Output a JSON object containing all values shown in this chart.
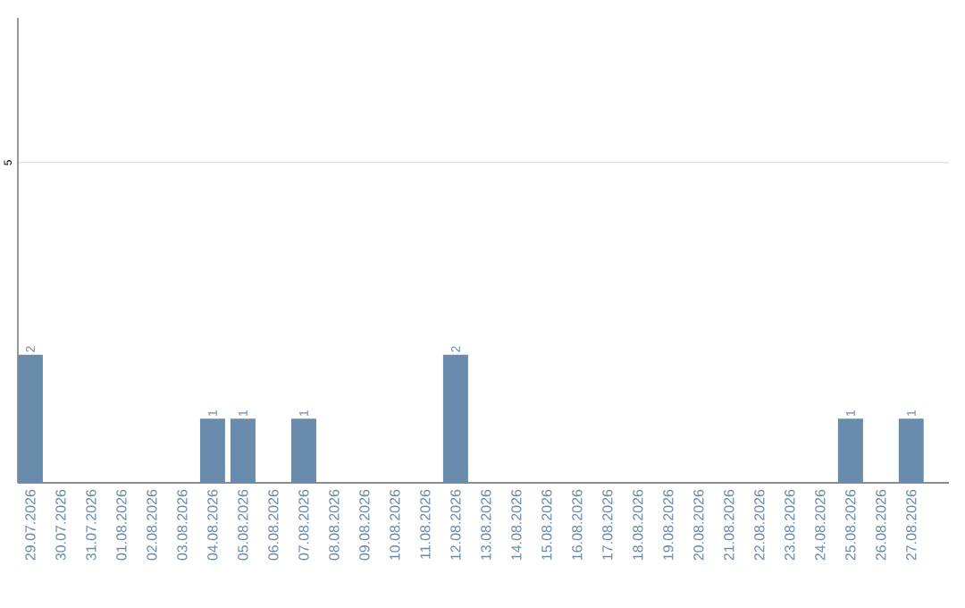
{
  "chart_data": {
    "type": "bar",
    "categories": [
      "29.07.2026",
      "30.07.2026",
      "31.07.2026",
      "01.08.2026",
      "02.08.2026",
      "03.08.2026",
      "04.08.2026",
      "05.08.2026",
      "06.08.2026",
      "07.08.2026",
      "08.08.2026",
      "09.08.2026",
      "10.08.2026",
      "11.08.2026",
      "12.08.2026",
      "13.08.2026",
      "14.08.2026",
      "15.08.2026",
      "16.08.2026",
      "17.08.2026",
      "18.08.2026",
      "19.08.2026",
      "20.08.2026",
      "21.08.2026",
      "22.08.2026",
      "23.08.2026",
      "24.08.2026",
      "25.08.2026",
      "26.08.2026",
      "27.08.2026"
    ],
    "values": [
      2,
      0,
      0,
      0,
      0,
      0,
      1,
      1,
      0,
      1,
      0,
      0,
      0,
      0,
      2,
      0,
      0,
      0,
      0,
      0,
      0,
      0,
      0,
      0,
      0,
      0,
      0,
      1,
      0,
      1
    ],
    "value_labels": [
      "2",
      null,
      null,
      null,
      null,
      null,
      "1",
      "1",
      null,
      "1",
      null,
      null,
      null,
      null,
      "2",
      null,
      null,
      null,
      null,
      null,
      null,
      null,
      null,
      null,
      null,
      null,
      null,
      "1",
      null,
      "1"
    ],
    "color": "#6a8cac",
    "ylim": [
      0,
      7.26
    ],
    "yticks": [
      {
        "value": 0,
        "label": null
      },
      5
    ],
    "grid": "y"
  }
}
